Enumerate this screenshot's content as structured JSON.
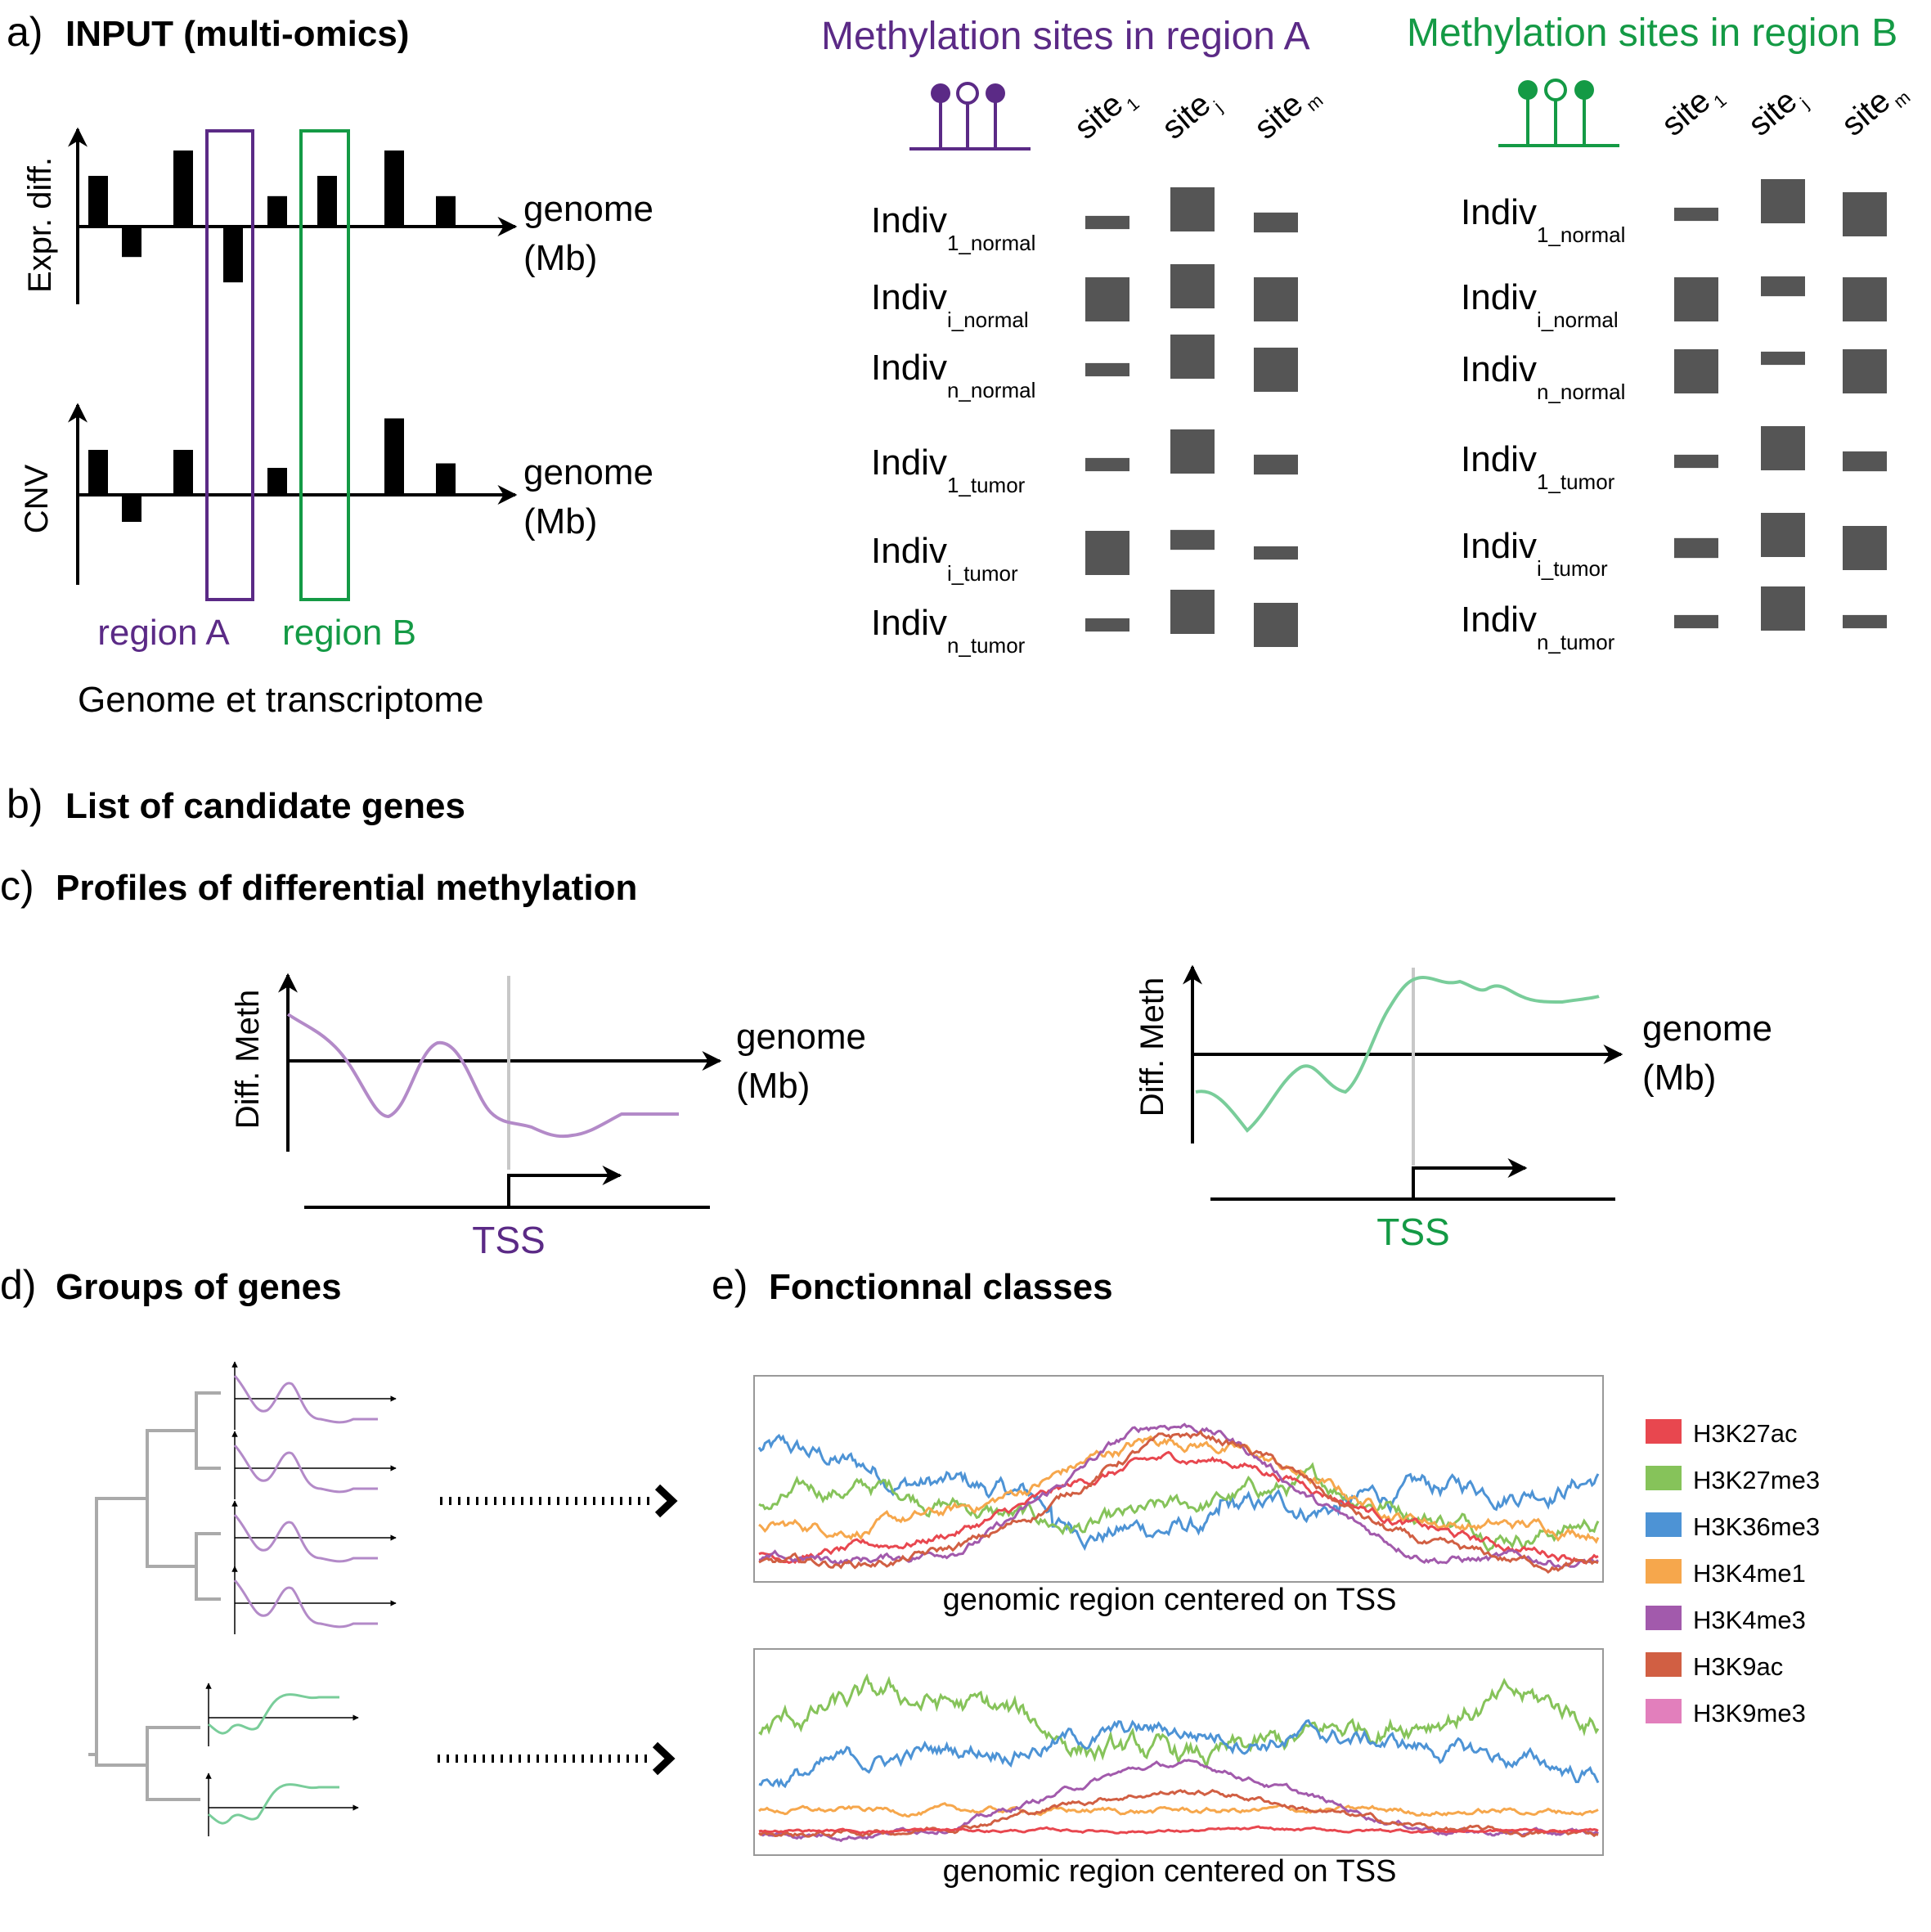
{
  "colors": {
    "purple": "#5b2a86",
    "green": "#149a45",
    "curve_purple": "#b38ac8",
    "curve_green": "#79cd9a",
    "bar": "#555555",
    "tree": "#aaaaaa"
  },
  "panel_a": {
    "letter": "a)",
    "title": "INPUT (multi-omics)",
    "expr_axis": "Expr. diff.",
    "cnv_axis": "CNV",
    "genome_label_1": "genome",
    "genome_label_2": "(Mb)",
    "expr_values": [
      1,
      -0.6,
      1.5,
      -1.1,
      0.6,
      1.0,
      1.5,
      0.6
    ],
    "cnv_values": [
      1,
      -0.6,
      1,
      0.6,
      1.7,
      0.7
    ],
    "region_a": "region A",
    "region_b": "region B",
    "subtitle": "Genome et transcriptome"
  },
  "methylation": {
    "region_a_title": "Methylation sites in region A",
    "region_b_title": "Methylation sites in region B",
    "site_word": "site",
    "site_subs": [
      "1",
      "j",
      "m"
    ],
    "row_main": "Indiv",
    "row_subs": [
      "1_normal",
      "i_normal",
      "n_normal",
      "1_tumor",
      "i_tumor",
      "n_tumor"
    ],
    "region_a_levels": [
      [
        0.3,
        1.0,
        0.45
      ],
      [
        1.0,
        1.0,
        1.0
      ],
      [
        0.3,
        1.0,
        1.0
      ],
      [
        0.3,
        1.0,
        0.45
      ],
      [
        1.0,
        0.45,
        0.3
      ],
      [
        0.3,
        1.0,
        1.0
      ]
    ],
    "region_b_levels": [
      [
        0.3,
        1.0,
        1.0
      ],
      [
        1.0,
        0.45,
        1.0
      ],
      [
        1.0,
        0.3,
        1.0
      ],
      [
        0.3,
        1.0,
        0.45
      ],
      [
        0.45,
        1.0,
        1.0
      ],
      [
        0.3,
        1.0,
        0.3
      ]
    ]
  },
  "panel_b": {
    "letter": "b)",
    "title": "List of candidate genes"
  },
  "panel_c": {
    "letter": "c)",
    "title": "Profiles of differential methylation",
    "axis": "Diff. Meth",
    "genome_label_1": "genome",
    "genome_label_2": "(Mb)",
    "tss": "TSS"
  },
  "panel_d": {
    "letter": "d)",
    "title": "Groups of genes"
  },
  "panel_e": {
    "letter": "e)",
    "title": "Fonctionnal classes",
    "xlabel": "genomic region centered on TSS",
    "legend": [
      {
        "name": "H3K27ac",
        "color": "#e8474f"
      },
      {
        "name": "H3K27me3",
        "color": "#86c35a"
      },
      {
        "name": "H3K36me3",
        "color": "#4d93d5"
      },
      {
        "name": "H3K4me1",
        "color": "#f6a74c"
      },
      {
        "name": "H3K4me3",
        "color": "#a25aac"
      },
      {
        "name": "H3K9ac",
        "color": "#d15f43"
      },
      {
        "name": "H3K9me3",
        "color": "#e27fbc"
      }
    ]
  }
}
